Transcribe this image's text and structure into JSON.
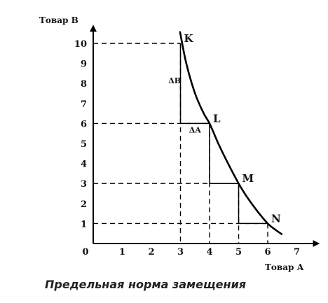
{
  "chart_data": {
    "type": "line",
    "xlabel": "Товар А",
    "ylabel": "Товар В",
    "origin_label": "0",
    "x_ticks": [
      1,
      2,
      3,
      4,
      5,
      6,
      7
    ],
    "y_ticks": [
      1,
      2,
      3,
      4,
      5,
      6,
      7,
      8,
      9,
      10
    ],
    "xlim": [
      0,
      7.5
    ],
    "ylim": [
      0,
      11
    ],
    "points": [
      {
        "label": "K",
        "x": 3,
        "y": 10
      },
      {
        "label": "L",
        "x": 4,
        "y": 6
      },
      {
        "label": "M",
        "x": 5,
        "y": 3
      },
      {
        "label": "N",
        "x": 6,
        "y": 1
      }
    ],
    "curve": {
      "x": [
        2.98,
        3.2,
        3.5,
        3.8,
        4.0,
        4.3,
        4.6,
        5.0,
        5.3,
        5.6,
        6.0,
        6.3,
        6.5
      ],
      "y": [
        10.6,
        9.0,
        7.5,
        6.5,
        6.0,
        5.0,
        4.1,
        3.0,
        2.3,
        1.7,
        1.0,
        0.65,
        0.45
      ]
    },
    "annotations": [
      {
        "text": "ΔB",
        "x": 2.8,
        "y": 8
      },
      {
        "text": "ΔA",
        "x": 3.5,
        "y": 5.55
      }
    ],
    "grid": false
  },
  "caption": "Предельная норма замещения"
}
